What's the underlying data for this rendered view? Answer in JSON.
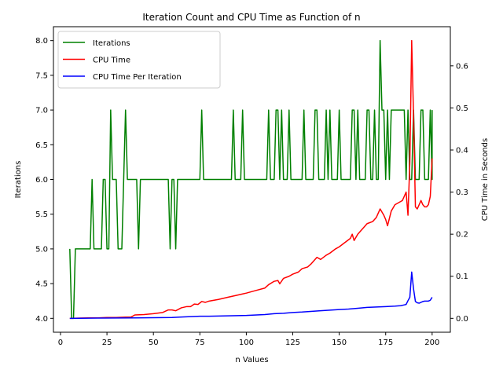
{
  "chart_data": {
    "type": "line",
    "title": "Iteration Count and CPU Time as Function of n",
    "xlabel": "n Values",
    "ylabel": "Iterations",
    "y2label": "CPU Time in Seconds",
    "xlim": [
      -3.8,
      209.8
    ],
    "ylim": [
      3.8,
      8.2
    ],
    "y2lim": [
      -0.033,
      0.693
    ],
    "xticks": [
      0,
      25,
      50,
      75,
      100,
      125,
      150,
      175,
      200
    ],
    "yticks": [
      4.0,
      4.5,
      5.0,
      5.5,
      6.0,
      6.5,
      7.0,
      7.5,
      8.0
    ],
    "y2ticks": [
      0.0,
      0.1,
      0.2,
      0.3,
      0.4,
      0.5,
      0.6
    ],
    "legend_position": "upper-left",
    "grid": false,
    "series": [
      {
        "name": "Iterations",
        "axis": "left",
        "color": "#008000",
        "points": [
          [
            5,
            5
          ],
          [
            6,
            4
          ],
          [
            7,
            4
          ],
          [
            8,
            5
          ],
          [
            9,
            5
          ],
          [
            16,
            5
          ],
          [
            17,
            6
          ],
          [
            18,
            5
          ],
          [
            19,
            5
          ],
          [
            22,
            5
          ],
          [
            23,
            6
          ],
          [
            24,
            6
          ],
          [
            25,
            5
          ],
          [
            26,
            5
          ],
          [
            27,
            7
          ],
          [
            28,
            6
          ],
          [
            29,
            6
          ],
          [
            30,
            6
          ],
          [
            31,
            5
          ],
          [
            32,
            5
          ],
          [
            33,
            5
          ],
          [
            34,
            6
          ],
          [
            35,
            7
          ],
          [
            36,
            6
          ],
          [
            37,
            6
          ],
          [
            41,
            6
          ],
          [
            42,
            5
          ],
          [
            43,
            6
          ],
          [
            44,
            6
          ],
          [
            58,
            6
          ],
          [
            59,
            5
          ],
          [
            60,
            6
          ],
          [
            61,
            6
          ],
          [
            62,
            5
          ],
          [
            63,
            6
          ],
          [
            64,
            6
          ],
          [
            75,
            6
          ],
          [
            76,
            7
          ],
          [
            77,
            6
          ],
          [
            78,
            6
          ],
          [
            92,
            6
          ],
          [
            93,
            7
          ],
          [
            94,
            6
          ],
          [
            95,
            6
          ],
          [
            97,
            6
          ],
          [
            98,
            7
          ],
          [
            99,
            6
          ],
          [
            100,
            6
          ],
          [
            111,
            6
          ],
          [
            112,
            7
          ],
          [
            113,
            6
          ],
          [
            114,
            6
          ],
          [
            115,
            6
          ],
          [
            116,
            7
          ],
          [
            117,
            7
          ],
          [
            118,
            6
          ],
          [
            119,
            7
          ],
          [
            120,
            6
          ],
          [
            121,
            6
          ],
          [
            122,
            6
          ],
          [
            123,
            7
          ],
          [
            124,
            6
          ],
          [
            125,
            6
          ],
          [
            130,
            6
          ],
          [
            131,
            7
          ],
          [
            132,
            6
          ],
          [
            133,
            6
          ],
          [
            136,
            6
          ],
          [
            137,
            7
          ],
          [
            138,
            7
          ],
          [
            139,
            6
          ],
          [
            140,
            6
          ],
          [
            142,
            6
          ],
          [
            143,
            7
          ],
          [
            144,
            6
          ],
          [
            145,
            7
          ],
          [
            146,
            6
          ],
          [
            147,
            6
          ],
          [
            149,
            6
          ],
          [
            150,
            7
          ],
          [
            151,
            6
          ],
          [
            152,
            6
          ],
          [
            156,
            6
          ],
          [
            157,
            7
          ],
          [
            158,
            7
          ],
          [
            159,
            6
          ],
          [
            160,
            7
          ],
          [
            161,
            6
          ],
          [
            162,
            6
          ],
          [
            164,
            6
          ],
          [
            165,
            7
          ],
          [
            166,
            7
          ],
          [
            167,
            6
          ],
          [
            168,
            6
          ],
          [
            169,
            7
          ],
          [
            170,
            6
          ],
          [
            171,
            6
          ],
          [
            172,
            8
          ],
          [
            173,
            7
          ],
          [
            174,
            7
          ],
          [
            175,
            6
          ],
          [
            176,
            7
          ],
          [
            177,
            6
          ],
          [
            178,
            7
          ],
          [
            179,
            7
          ],
          [
            184,
            7
          ],
          [
            185,
            7
          ],
          [
            186,
            6
          ],
          [
            187,
            7
          ],
          [
            188,
            6
          ],
          [
            189,
            6
          ],
          [
            190,
            7
          ],
          [
            191,
            6
          ],
          [
            192,
            6
          ],
          [
            193,
            6
          ],
          [
            194,
            7
          ],
          [
            195,
            7
          ],
          [
            196,
            6
          ],
          [
            197,
            6
          ],
          [
            198,
            6
          ],
          [
            199,
            7
          ],
          [
            200,
            6
          ],
          [
            200,
            7
          ]
        ]
      },
      {
        "name": "CPU Time",
        "axis": "right",
        "color": "#ff0000",
        "points": [
          [
            5,
            0.0
          ],
          [
            10,
            0.0005
          ],
          [
            15,
            0.001
          ],
          [
            20,
            0.001
          ],
          [
            25,
            0.002
          ],
          [
            30,
            0.002
          ],
          [
            35,
            0.003
          ],
          [
            38,
            0.003
          ],
          [
            40,
            0.008
          ],
          [
            45,
            0.009
          ],
          [
            50,
            0.011
          ],
          [
            55,
            0.014
          ],
          [
            58,
            0.02
          ],
          [
            60,
            0.02
          ],
          [
            62,
            0.018
          ],
          [
            65,
            0.025
          ],
          [
            68,
            0.028
          ],
          [
            70,
            0.028
          ],
          [
            72,
            0.034
          ],
          [
            74,
            0.033
          ],
          [
            76,
            0.04
          ],
          [
            78,
            0.038
          ],
          [
            80,
            0.041
          ],
          [
            85,
            0.045
          ],
          [
            90,
            0.05
          ],
          [
            95,
            0.055
          ],
          [
            98,
            0.058
          ],
          [
            100,
            0.06
          ],
          [
            105,
            0.066
          ],
          [
            110,
            0.072
          ],
          [
            112,
            0.08
          ],
          [
            115,
            0.088
          ],
          [
            117,
            0.09
          ],
          [
            118,
            0.082
          ],
          [
            120,
            0.095
          ],
          [
            123,
            0.1
          ],
          [
            125,
            0.105
          ],
          [
            128,
            0.11
          ],
          [
            130,
            0.118
          ],
          [
            133,
            0.122
          ],
          [
            135,
            0.13
          ],
          [
            138,
            0.145
          ],
          [
            140,
            0.14
          ],
          [
            143,
            0.15
          ],
          [
            145,
            0.155
          ],
          [
            148,
            0.165
          ],
          [
            150,
            0.17
          ],
          [
            153,
            0.18
          ],
          [
            156,
            0.19
          ],
          [
            157,
            0.2
          ],
          [
            158,
            0.185
          ],
          [
            160,
            0.2
          ],
          [
            163,
            0.215
          ],
          [
            165,
            0.225
          ],
          [
            168,
            0.23
          ],
          [
            170,
            0.24
          ],
          [
            172,
            0.26
          ],
          [
            174,
            0.245
          ],
          [
            175,
            0.235
          ],
          [
            176,
            0.22
          ],
          [
            178,
            0.255
          ],
          [
            180,
            0.27
          ],
          [
            182,
            0.275
          ],
          [
            184,
            0.28
          ],
          [
            185,
            0.29
          ],
          [
            186,
            0.3
          ],
          [
            187,
            0.245
          ],
          [
            188,
            0.37
          ],
          [
            189,
            0.66
          ],
          [
            190,
            0.48
          ],
          [
            191,
            0.265
          ],
          [
            192,
            0.26
          ],
          [
            193,
            0.27
          ],
          [
            194,
            0.28
          ],
          [
            195,
            0.27
          ],
          [
            196,
            0.265
          ],
          [
            197,
            0.265
          ],
          [
            198,
            0.27
          ],
          [
            199,
            0.29
          ],
          [
            200,
            0.38
          ]
        ]
      },
      {
        "name": "CPU Time Per Iteration",
        "axis": "right",
        "color": "#0000ff",
        "points": [
          [
            5,
            0.0
          ],
          [
            20,
            0.0005
          ],
          [
            40,
            0.001
          ],
          [
            50,
            0.0015
          ],
          [
            60,
            0.002
          ],
          [
            64,
            0.003
          ],
          [
            70,
            0.004
          ],
          [
            75,
            0.005
          ],
          [
            80,
            0.005
          ],
          [
            90,
            0.006
          ],
          [
            100,
            0.007
          ],
          [
            110,
            0.009
          ],
          [
            115,
            0.011
          ],
          [
            120,
            0.012
          ],
          [
            125,
            0.014
          ],
          [
            130,
            0.015
          ],
          [
            140,
            0.018
          ],
          [
            150,
            0.021
          ],
          [
            155,
            0.022
          ],
          [
            160,
            0.024
          ],
          [
            165,
            0.026
          ],
          [
            170,
            0.027
          ],
          [
            175,
            0.028
          ],
          [
            180,
            0.029
          ],
          [
            183,
            0.03
          ],
          [
            185,
            0.032
          ],
          [
            186,
            0.033
          ],
          [
            187,
            0.042
          ],
          [
            188,
            0.05
          ],
          [
            189,
            0.11
          ],
          [
            190,
            0.07
          ],
          [
            191,
            0.04
          ],
          [
            192,
            0.037
          ],
          [
            193,
            0.036
          ],
          [
            194,
            0.038
          ],
          [
            195,
            0.04
          ],
          [
            196,
            0.041
          ],
          [
            197,
            0.041
          ],
          [
            198,
            0.041
          ],
          [
            199,
            0.043
          ],
          [
            200,
            0.05
          ]
        ]
      }
    ]
  }
}
